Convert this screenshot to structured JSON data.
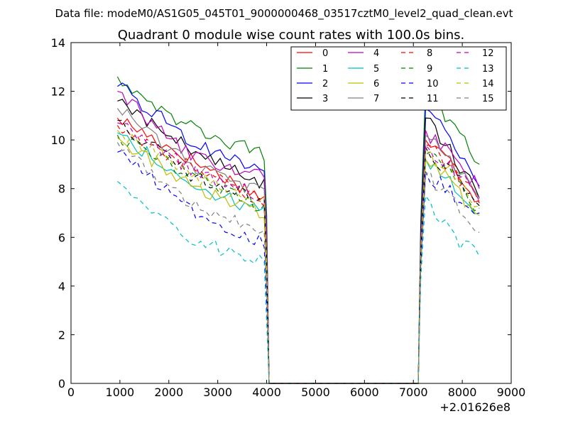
{
  "header": {
    "suptitle": "Data file: modeM0/AS1G05_045T01_9000000468_03517cztM0_level2_quad_clean.evt"
  },
  "chart_data": {
    "type": "line",
    "title": "Quadrant 0 module wise count rates with 100.0s bins.",
    "xlabel": "",
    "ylabel": "",
    "x_offset_label": "+2.01626e8",
    "xlim": [
      0,
      9000
    ],
    "ylim": [
      0,
      14
    ],
    "xticks": [
      "0",
      "1000",
      "2000",
      "3000",
      "4000",
      "5000",
      "6000",
      "7000",
      "8000",
      "9000"
    ],
    "yticks": [
      "0",
      "2",
      "4",
      "6",
      "8",
      "10",
      "12",
      "14"
    ],
    "grid": false,
    "legend": {
      "placement": "top-right",
      "columns": 4
    },
    "x_segments": [
      [
        950,
        3950
      ],
      [
        7250,
        8350
      ]
    ],
    "series": [
      {
        "name": "0",
        "color": "#ff0000",
        "dash": "solid",
        "seg1": [
          10.9,
          9.2,
          7.6
        ],
        "seg2": [
          10.0,
          9.0,
          7.5
        ]
      },
      {
        "name": "1",
        "color": "#008000",
        "dash": "solid",
        "seg1": [
          12.6,
          10.5,
          9.4
        ],
        "seg2": [
          12.1,
          10.5,
          9.0
        ]
      },
      {
        "name": "2",
        "color": "#0000ff",
        "dash": "solid",
        "seg1": [
          12.2,
          10.0,
          8.7
        ],
        "seg2": [
          11.3,
          9.8,
          8.1
        ]
      },
      {
        "name": "3",
        "color": "#000000",
        "dash": "solid",
        "seg1": [
          11.6,
          9.6,
          8.1
        ],
        "seg2": [
          10.9,
          9.5,
          7.6
        ]
      },
      {
        "name": "4",
        "color": "#bf00bf",
        "dash": "solid",
        "seg1": [
          12.0,
          9.3,
          8.5
        ],
        "seg2": [
          10.4,
          9.3,
          8.0
        ]
      },
      {
        "name": "5",
        "color": "#00bfbf",
        "dash": "solid",
        "seg1": [
          10.3,
          8.2,
          7.0
        ],
        "seg2": [
          9.2,
          8.2,
          7.0
        ]
      },
      {
        "name": "6",
        "color": "#bfbf00",
        "dash": "solid",
        "seg1": [
          10.1,
          8.1,
          6.9
        ],
        "seg2": [
          9.2,
          8.1,
          6.9
        ]
      },
      {
        "name": "7",
        "color": "#808080",
        "dash": "solid",
        "seg1": [
          11.3,
          9.0,
          7.8
        ],
        "seg2": [
          10.2,
          9.0,
          7.6
        ]
      },
      {
        "name": "8",
        "color": "#ff0000",
        "dash": "dashed",
        "seg1": [
          10.6,
          8.9,
          7.4
        ],
        "seg2": [
          9.8,
          8.8,
          7.4
        ]
      },
      {
        "name": "9",
        "color": "#008000",
        "dash": "dashed",
        "seg1": [
          10.2,
          8.5,
          7.2
        ],
        "seg2": [
          9.4,
          8.5,
          7.2
        ]
      },
      {
        "name": "10",
        "color": "#0000ff",
        "dash": "dashed",
        "seg1": [
          9.5,
          7.1,
          5.8
        ],
        "seg2": [
          8.7,
          7.8,
          7.0
        ]
      },
      {
        "name": "11",
        "color": "#000000",
        "dash": "dashed",
        "seg1": [
          10.8,
          8.6,
          7.5
        ],
        "seg2": [
          9.7,
          8.6,
          7.3
        ]
      },
      {
        "name": "12",
        "color": "#bf00bf",
        "dash": "dashed",
        "seg1": [
          10.7,
          8.8,
          7.6
        ],
        "seg2": [
          9.8,
          8.8,
          7.5
        ]
      },
      {
        "name": "13",
        "color": "#00bfbf",
        "dash": "dashed",
        "seg1": [
          8.3,
          5.9,
          5.0
        ],
        "seg2": [
          7.7,
          6.0,
          5.2
        ]
      },
      {
        "name": "14",
        "color": "#bfbf00",
        "dash": "dashed",
        "seg1": [
          10.4,
          8.6,
          7.4
        ],
        "seg2": [
          9.5,
          8.6,
          7.3
        ]
      },
      {
        "name": "15",
        "color": "#808080",
        "dash": "dashed",
        "seg1": [
          9.9,
          7.3,
          6.3
        ],
        "seg2": [
          8.6,
          7.4,
          6.2
        ]
      }
    ]
  }
}
